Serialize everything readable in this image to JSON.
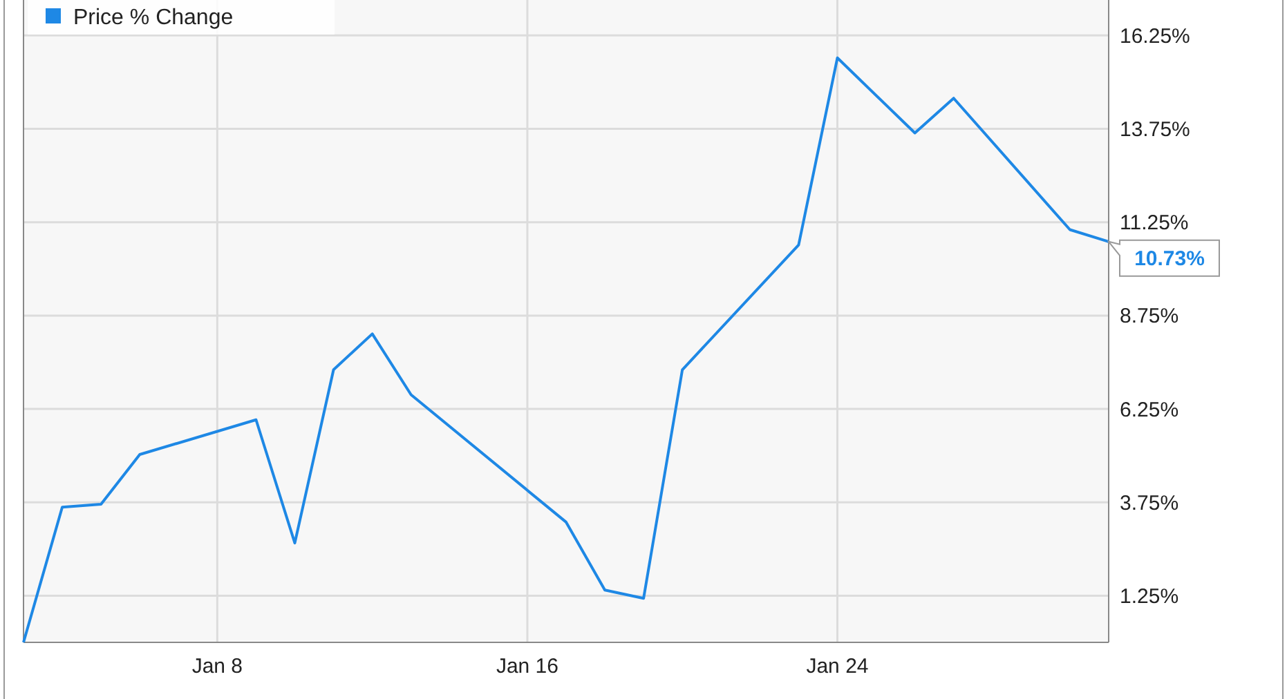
{
  "chart_data": {
    "type": "line",
    "x": [
      "--01-03",
      "--01-04",
      "--01-05",
      "--01-06",
      "--01-09",
      "--01-10",
      "--01-11",
      "--01-12",
      "--01-13",
      "--01-17",
      "--01-18",
      "--01-19",
      "--01-20",
      "--01-23",
      "--01-24",
      "--01-26",
      "--01-27",
      "--01-30",
      "--01-31"
    ],
    "series": [
      {
        "name": "Price % Change",
        "color": "#1e88e5",
        "values": [
          0,
          3.62,
          3.7,
          5.03,
          5.96,
          2.66,
          7.3,
          8.26,
          6.63,
          3.22,
          1.4,
          1.18,
          7.3,
          10.64,
          15.65,
          13.64,
          14.57,
          11.05,
          10.73
        ]
      }
    ],
    "xlim": [
      "--01-03",
      "--01-31"
    ],
    "xticks": [
      {
        "value": "--01-08",
        "label": "Jan 8"
      },
      {
        "value": "--01-16",
        "label": "Jan 16"
      },
      {
        "value": "--01-24",
        "label": "Jan 24"
      }
    ],
    "ylim": [
      0,
      17.2
    ],
    "yticks": [
      {
        "value": 1.25,
        "label": "1.25%"
      },
      {
        "value": 3.75,
        "label": "3.75%"
      },
      {
        "value": 6.25,
        "label": "6.25%"
      },
      {
        "value": 8.75,
        "label": "8.75%"
      },
      {
        "value": 11.25,
        "label": "11.25%"
      },
      {
        "value": 13.75,
        "label": "13.75%"
      },
      {
        "value": 16.25,
        "label": "16.25%"
      }
    ],
    "annotations": [
      {
        "text": "10.73%",
        "x": "--01-31",
        "y": 10.73
      }
    ],
    "grid": true,
    "legend": "top left",
    "marker": "none",
    "line_style": "solid"
  }
}
